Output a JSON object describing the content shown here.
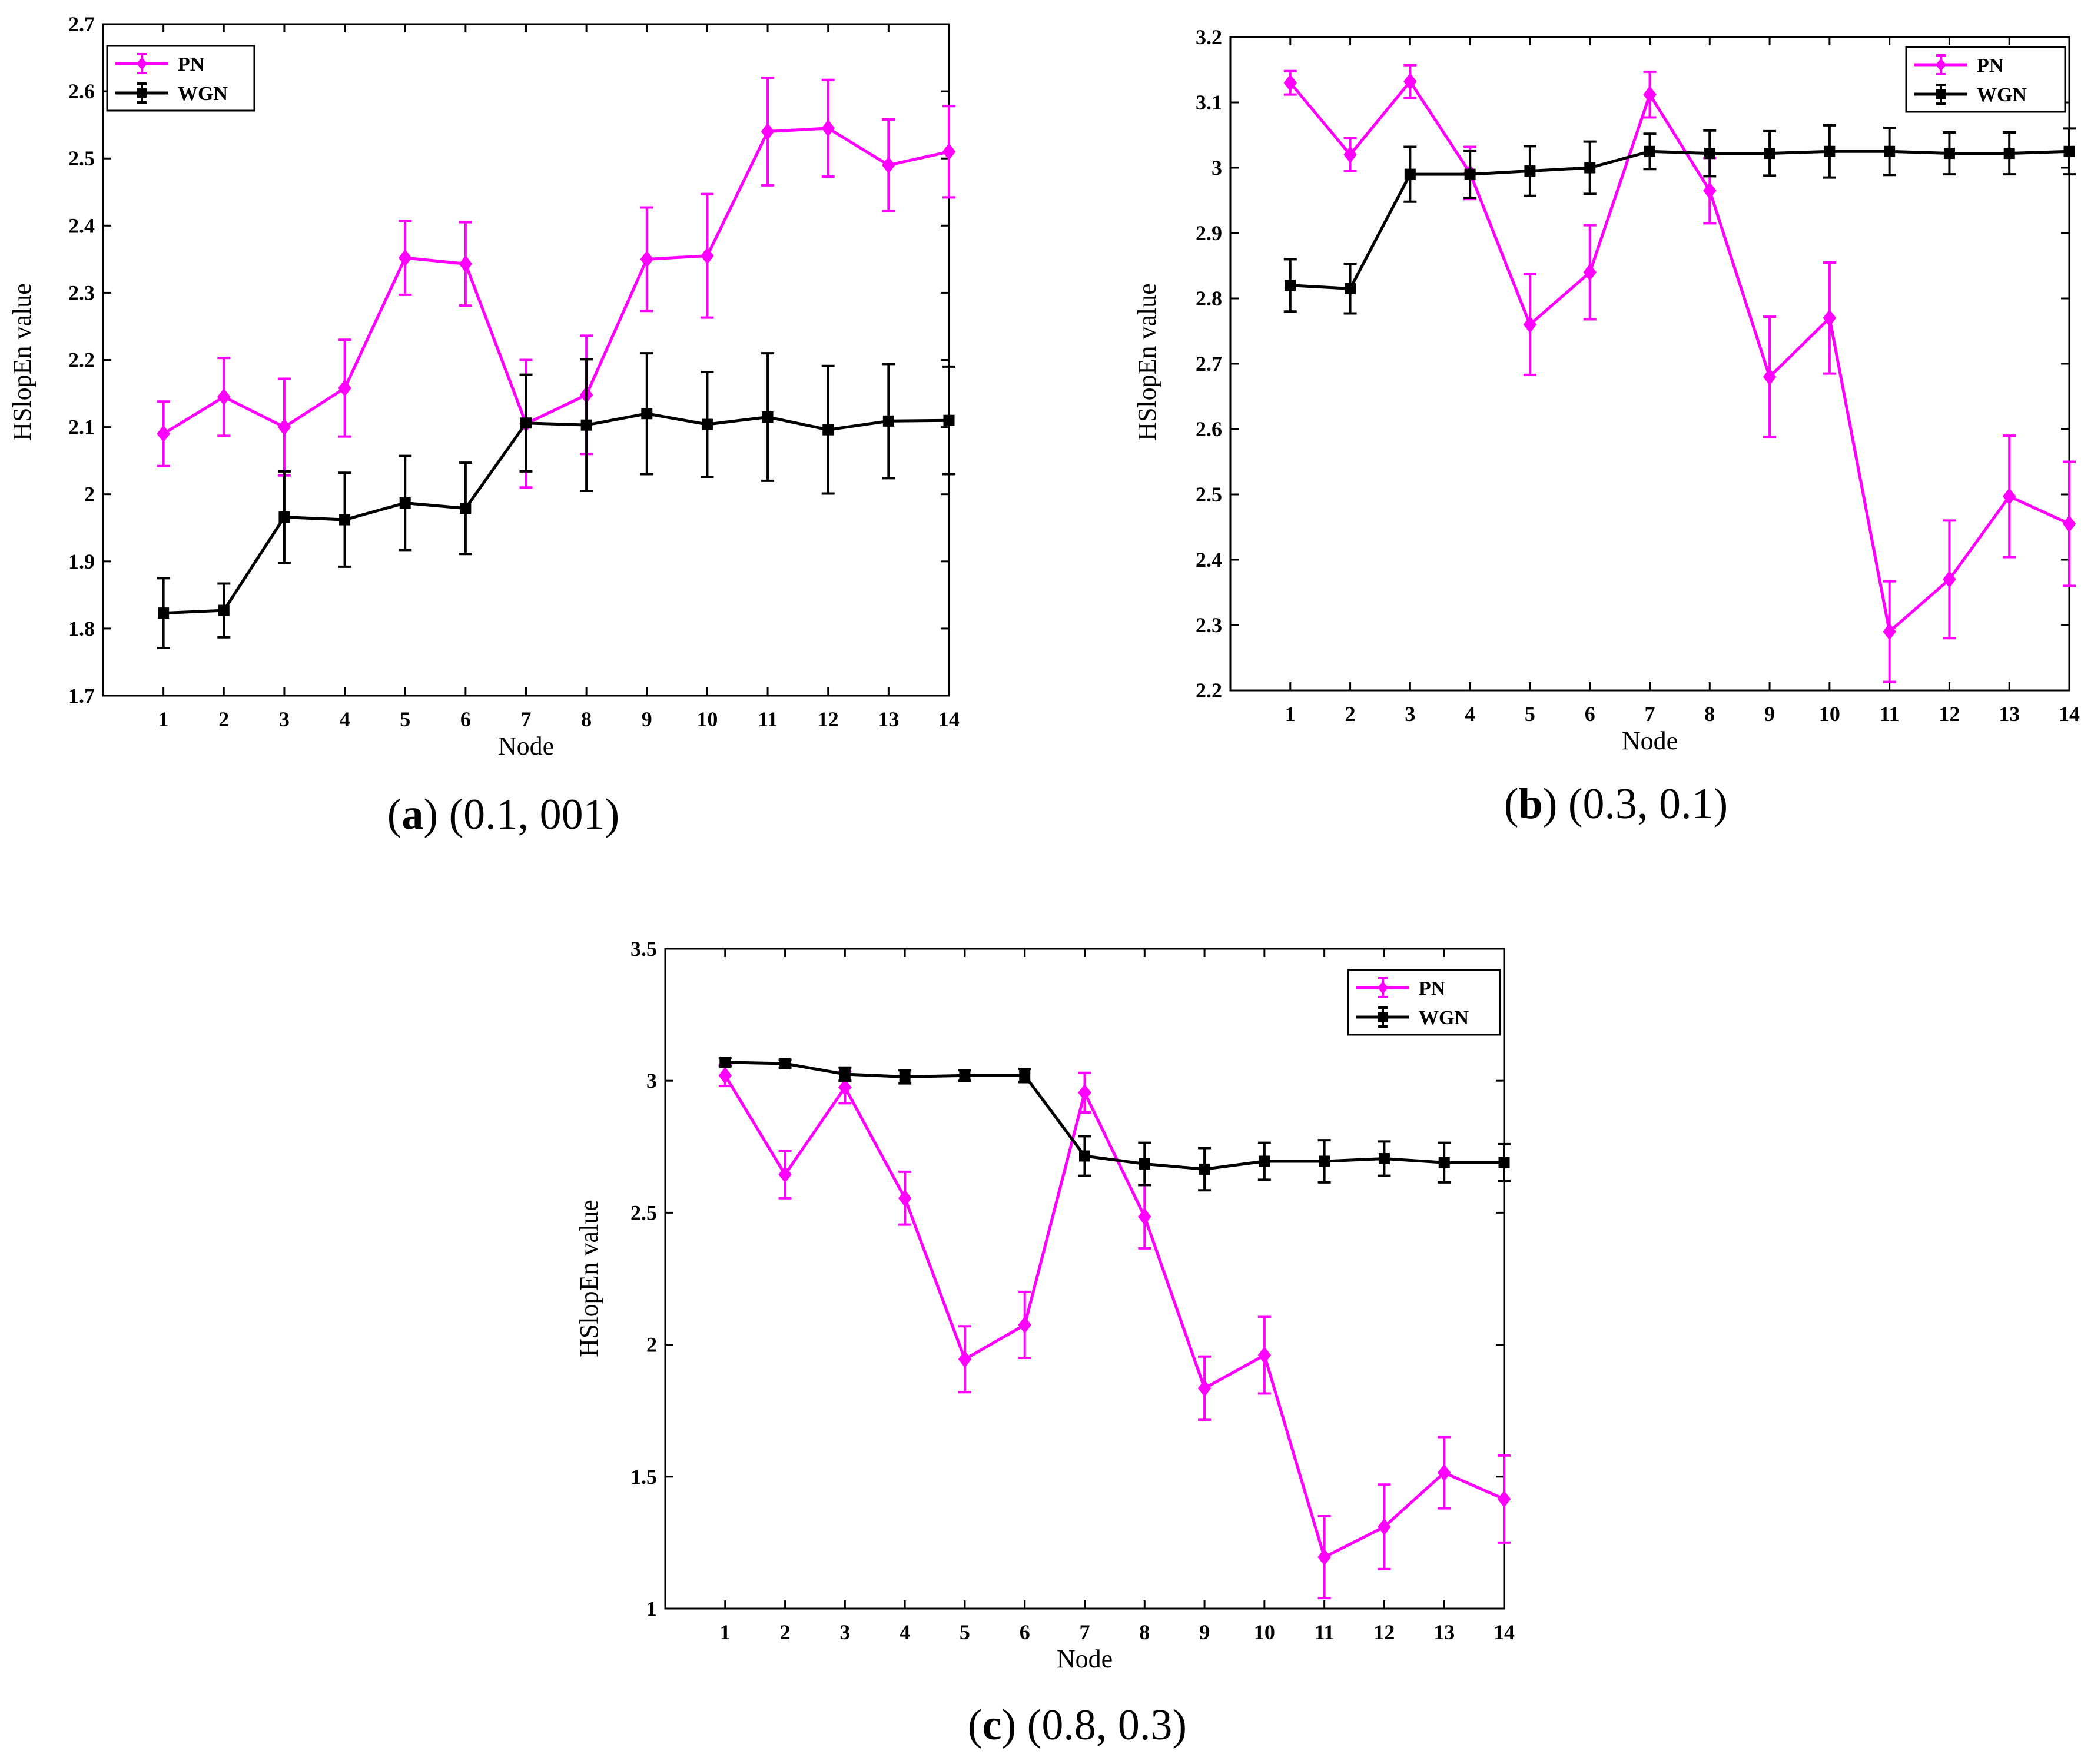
{
  "colors": {
    "pn": "#ff00ff",
    "wgn": "#000000"
  },
  "chart_data": [
    {
      "type": "line",
      "panel_letter": "a",
      "caption_params": "(0.1, 001)",
      "xlabel": "Node",
      "ylabel": "HSlopEn value",
      "x": [
        1,
        2,
        3,
        4,
        5,
        6,
        7,
        8,
        9,
        10,
        11,
        12,
        13,
        14
      ],
      "xlim": [
        0,
        14
      ],
      "ylim": [
        1.7,
        2.7
      ],
      "yticks": [
        1.7,
        1.8,
        1.9,
        2,
        2.1,
        2.2,
        2.3,
        2.4,
        2.5,
        2.6,
        2.7
      ],
      "ytick_labels": [
        "1.7",
        "1.8",
        "1.9",
        "2",
        "2.1",
        "2.2",
        "2.3",
        "2.4",
        "2.5",
        "2.6",
        "2.7"
      ],
      "legend": {
        "position": "top-left",
        "entries": [
          "PN",
          "WGN"
        ]
      },
      "series": [
        {
          "name": "PN",
          "color": "#ff00ff",
          "marker": "diamond",
          "values": [
            2.09,
            2.145,
            2.1,
            2.158,
            2.352,
            2.343,
            2.105,
            2.148,
            2.35,
            2.355,
            2.54,
            2.545,
            2.49,
            2.51
          ],
          "errors": [
            0.048,
            0.058,
            0.072,
            0.072,
            0.055,
            0.062,
            0.095,
            0.088,
            0.077,
            0.092,
            0.08,
            0.072,
            0.068,
            0.068
          ]
        },
        {
          "name": "WGN",
          "color": "#000000",
          "marker": "square",
          "values": [
            1.823,
            1.827,
            1.966,
            1.962,
            1.987,
            1.979,
            2.106,
            2.103,
            2.12,
            2.104,
            2.115,
            2.096,
            2.109,
            2.11
          ],
          "errors": [
            0.052,
            0.04,
            0.068,
            0.07,
            0.07,
            0.068,
            0.072,
            0.098,
            0.09,
            0.078,
            0.095,
            0.095,
            0.085,
            0.08
          ]
        }
      ]
    },
    {
      "type": "line",
      "panel_letter": "b",
      "caption_params": "(0.3, 0.1)",
      "xlabel": "Node",
      "ylabel": "HSlopEn value",
      "x": [
        1,
        2,
        3,
        4,
        5,
        6,
        7,
        8,
        9,
        10,
        11,
        12,
        13,
        14
      ],
      "xlim": [
        0,
        14
      ],
      "ylim": [
        2.2,
        3.2
      ],
      "yticks": [
        2.2,
        2.3,
        2.4,
        2.5,
        2.6,
        2.7,
        2.8,
        2.9,
        3,
        3.1,
        3.2
      ],
      "ytick_labels": [
        "2.2",
        "2.3",
        "2.4",
        "2.5",
        "2.6",
        "2.7",
        "2.8",
        "2.9",
        "3",
        "3.1",
        "3.2"
      ],
      "legend": {
        "position": "top-right",
        "entries": [
          "PN",
          "WGN"
        ]
      },
      "series": [
        {
          "name": "PN",
          "color": "#ff00ff",
          "marker": "diamond",
          "values": [
            3.13,
            3.02,
            3.132,
            2.992,
            2.76,
            2.84,
            3.112,
            2.965,
            2.68,
            2.77,
            2.29,
            2.37,
            2.497,
            2.455
          ],
          "errors": [
            0.018,
            0.025,
            0.025,
            0.04,
            0.077,
            0.072,
            0.035,
            0.05,
            0.092,
            0.085,
            0.077,
            0.09,
            0.093,
            0.095
          ]
        },
        {
          "name": "WGN",
          "color": "#000000",
          "marker": "square",
          "values": [
            2.82,
            2.815,
            2.99,
            2.99,
            2.995,
            3.0,
            3.025,
            3.022,
            3.022,
            3.025,
            3.025,
            3.022,
            3.022,
            3.025
          ],
          "errors": [
            0.04,
            0.038,
            0.042,
            0.036,
            0.038,
            0.04,
            0.027,
            0.035,
            0.034,
            0.04,
            0.036,
            0.032,
            0.032,
            0.035
          ]
        }
      ]
    },
    {
      "type": "line",
      "panel_letter": "c",
      "caption_params": "(0.8, 0.3)",
      "xlabel": "Node",
      "ylabel": "HSlopEn value",
      "x": [
        1,
        2,
        3,
        4,
        5,
        6,
        7,
        8,
        9,
        10,
        11,
        12,
        13,
        14
      ],
      "xlim": [
        0,
        14
      ],
      "ylim": [
        1,
        3.5
      ],
      "yticks": [
        1,
        1.5,
        2,
        2.5,
        3,
        3.5
      ],
      "ytick_labels": [
        "1",
        "1.5",
        "2",
        "2.5",
        "3",
        "3.5"
      ],
      "legend": {
        "position": "top-right",
        "entries": [
          "PN",
          "WGN"
        ]
      },
      "series": [
        {
          "name": "PN",
          "color": "#ff00ff",
          "marker": "diamond",
          "values": [
            3.02,
            2.645,
            2.975,
            2.555,
            1.945,
            2.075,
            2.955,
            2.485,
            1.835,
            1.96,
            1.195,
            1.31,
            1.515,
            1.415
          ],
          "errors": [
            0.04,
            0.09,
            0.06,
            0.1,
            0.125,
            0.125,
            0.075,
            0.12,
            0.12,
            0.145,
            0.155,
            0.16,
            0.135,
            0.165
          ]
        },
        {
          "name": "WGN",
          "color": "#000000",
          "marker": "square",
          "values": [
            3.07,
            3.065,
            3.025,
            3.015,
            3.02,
            3.02,
            2.715,
            2.685,
            2.665,
            2.695,
            2.695,
            2.705,
            2.69,
            2.69
          ],
          "errors": [
            0.015,
            0.015,
            0.025,
            0.025,
            0.02,
            0.025,
            0.075,
            0.08,
            0.08,
            0.07,
            0.08,
            0.065,
            0.075,
            0.07
          ]
        }
      ]
    }
  ]
}
